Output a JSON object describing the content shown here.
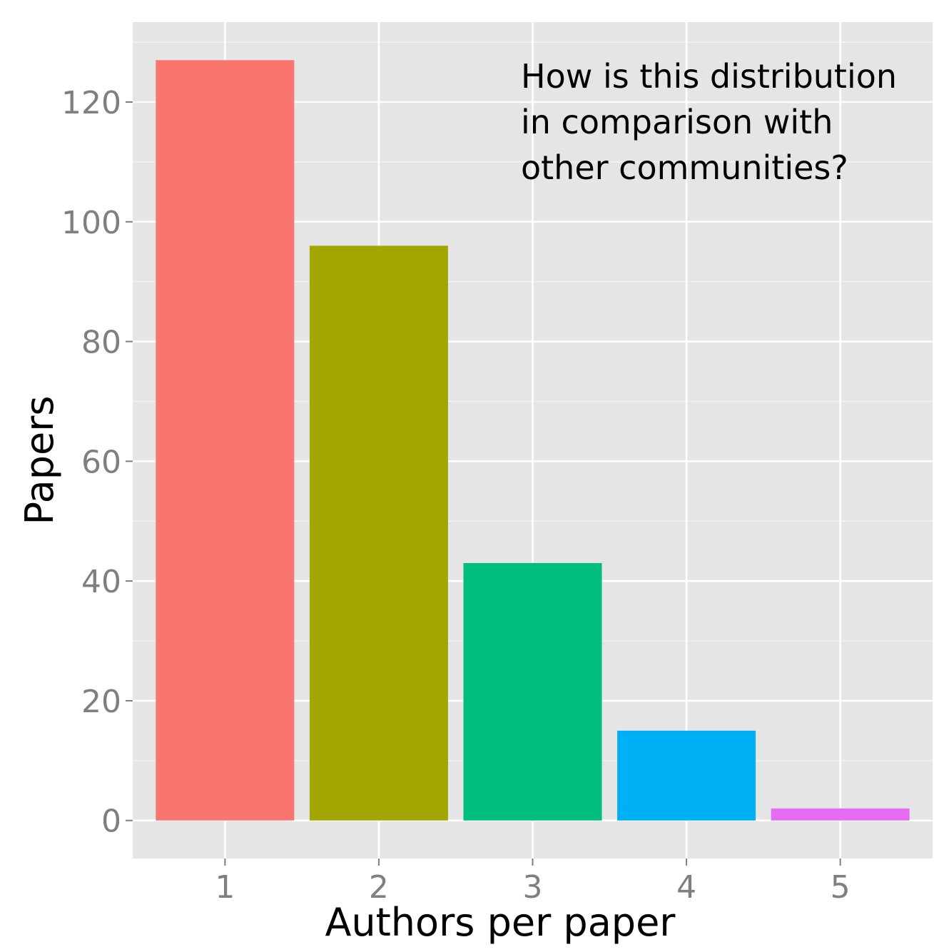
{
  "chart_data": {
    "type": "bar",
    "categories": [
      "1",
      "2",
      "3",
      "4",
      "5"
    ],
    "values": [
      127,
      96,
      43,
      15,
      2
    ],
    "colors": [
      "#F8766D",
      "#A3A500",
      "#00BF7D",
      "#00B0F6",
      "#E76BF3"
    ],
    "xlabel": "Authors per paper",
    "ylabel": "Papers",
    "yticks": [
      0,
      20,
      40,
      60,
      80,
      100,
      120
    ],
    "ylim": [
      -6.35,
      133.35
    ],
    "xlim": [
      0.4,
      5.6
    ],
    "grid": true,
    "legend": "none",
    "annotation": {
      "lines": [
        "How is this distribution",
        "in comparison with",
        "other communities?"
      ]
    },
    "panel_color": "#E5E5E5",
    "grid_color": "#FFFFFF"
  }
}
